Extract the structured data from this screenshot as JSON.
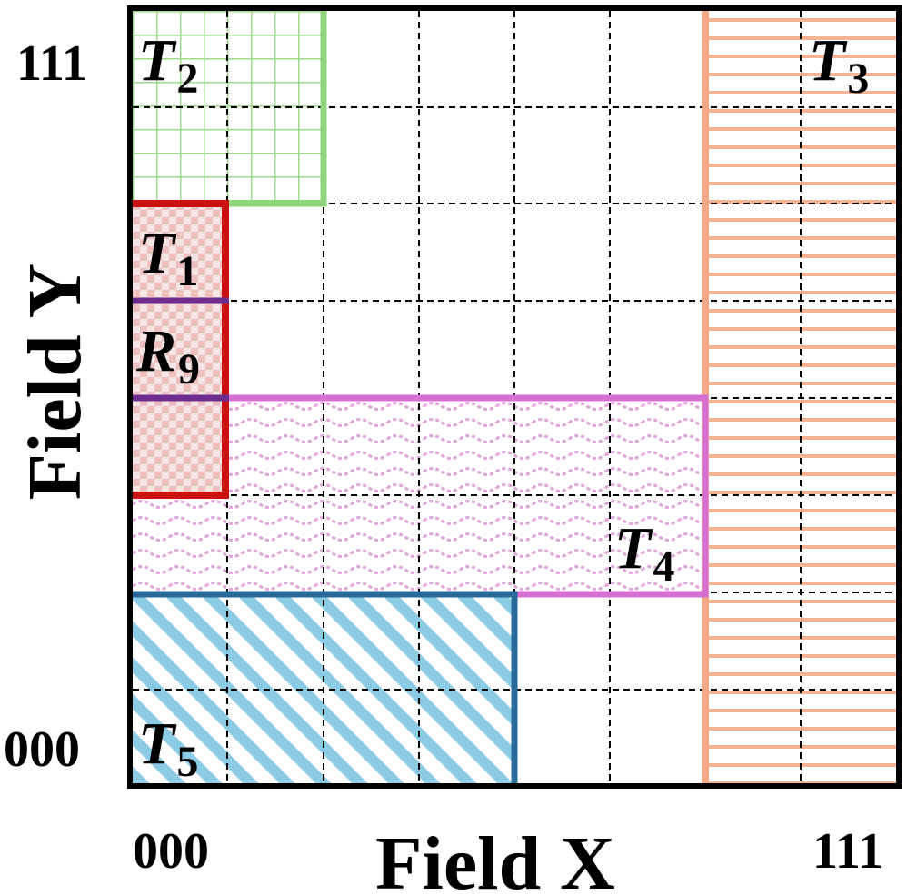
{
  "axes": {
    "x_label": "Field X",
    "y_label": "Field Y",
    "x_min_tick": "000",
    "x_max_tick": "111",
    "y_min_tick": "000",
    "y_max_tick": "111"
  },
  "grid": {
    "columns": 8,
    "rows": 8,
    "line_style": "dashed"
  },
  "regions": [
    {
      "id": "T2",
      "letter": "T",
      "sub": "2",
      "color": "#8ed67a",
      "pattern": "grid"
    },
    {
      "id": "T3",
      "letter": "T",
      "sub": "3",
      "color": "#f2a882",
      "pattern": "horizontal-lines"
    },
    {
      "id": "T1",
      "letter": "T",
      "sub": "1",
      "color": "#cc1111",
      "fill": "#eec0bd",
      "pattern": "dots"
    },
    {
      "id": "R9",
      "letter": "R",
      "sub": "9",
      "color": "#6b2e8f"
    },
    {
      "id": "T4",
      "letter": "T",
      "sub": "4",
      "color": "#d66fd0",
      "pattern": "waves"
    },
    {
      "id": "T5",
      "letter": "T",
      "sub": "5",
      "color": "#2a6a9a",
      "fill": "#8ccbe6",
      "pattern": "diagonal-stripes"
    }
  ]
}
